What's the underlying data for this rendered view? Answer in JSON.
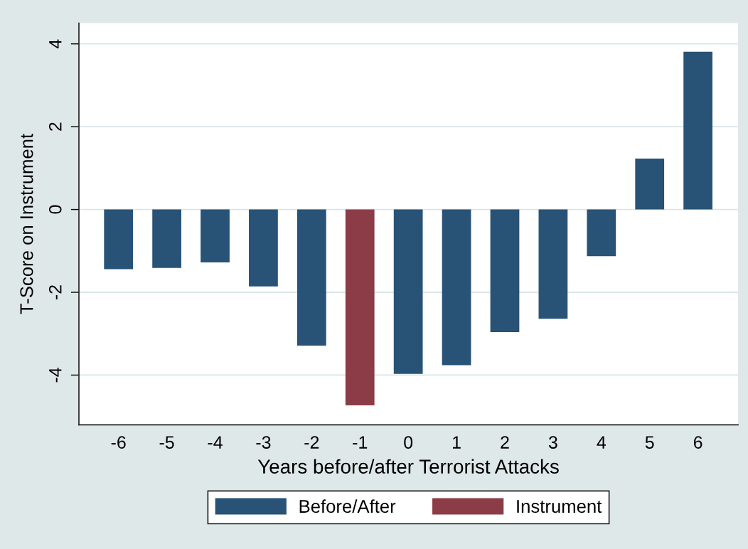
{
  "chart_data": {
    "type": "bar",
    "xlabel": "Years before/after Terrorist Attacks",
    "ylabel": "T-Score on Instrument",
    "categories": [
      "-6",
      "-5",
      "-4",
      "-3",
      "-2",
      "-1",
      "0",
      "1",
      "2",
      "3",
      "4",
      "5",
      "6"
    ],
    "series": [
      {
        "name": "Before/After",
        "color": "#285276",
        "values": [
          -1.44,
          -1.41,
          -1.28,
          -1.86,
          -3.29,
          null,
          -3.97,
          -3.76,
          -2.96,
          -2.64,
          -1.13,
          1.23,
          3.81
        ]
      },
      {
        "name": "Instrument",
        "color": "#8b3c47",
        "values": [
          null,
          null,
          null,
          null,
          null,
          -4.73,
          null,
          null,
          null,
          null,
          null,
          null,
          null
        ]
      }
    ],
    "ylim": [
      -5.2,
      4.5
    ],
    "yticks": [
      -4,
      -2,
      0,
      2,
      4
    ],
    "grid": "y",
    "legend": "bottom"
  }
}
